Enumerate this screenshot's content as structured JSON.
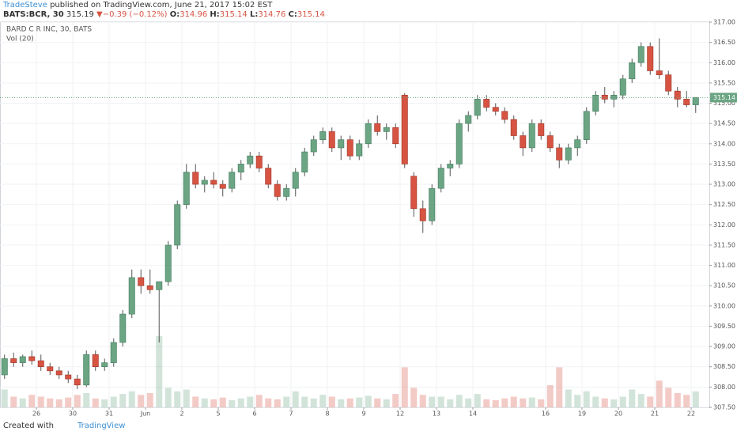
{
  "header": {
    "author": "TradeSteve",
    "published": "published on TradingView.com, June 21, 2017 15:02 EST",
    "symbol": "BATS:BCR, 30",
    "price": "315.19",
    "change": "−0.39 (−0.12%)",
    "o_label": "O:",
    "o": "314.96",
    "h_label": "H:",
    "h": "315.14",
    "l_label": "L:",
    "l": "314.76",
    "c_label": "C:",
    "c": "315.14"
  },
  "footer": {
    "created": "Created with",
    "brand": "TradingView"
  },
  "chart_data": {
    "type": "candlestick",
    "legend": [
      "BARD C R INC, 30, BATS",
      "Vol (20)"
    ],
    "up_color": "#6ba583",
    "down_color": "#d75442",
    "grid": true,
    "last_price": 315.14,
    "xlim": [
      0,
      78
    ],
    "xticks": [
      {
        "value": 4,
        "label": "26"
      },
      {
        "value": 8,
        "label": "30"
      },
      {
        "value": 12,
        "label": "31"
      },
      {
        "value": 16,
        "label": "Jun"
      },
      {
        "value": 20,
        "label": "2"
      },
      {
        "value": 24,
        "label": "5"
      },
      {
        "value": 28,
        "label": "6"
      },
      {
        "value": 32,
        "label": "7"
      },
      {
        "value": 36,
        "label": "8"
      },
      {
        "value": 40,
        "label": "9"
      },
      {
        "value": 44,
        "label": "12"
      },
      {
        "value": 48,
        "label": "13"
      },
      {
        "value": 52,
        "label": "14"
      },
      {
        "value": 60,
        "label": "16"
      },
      {
        "value": 64,
        "label": "19"
      },
      {
        "value": 68,
        "label": "20"
      },
      {
        "value": 72,
        "label": "21"
      },
      {
        "value": 76,
        "label": "22"
      }
    ],
    "ylim": [
      307.5,
      317
    ],
    "yticks": [
      {
        "value": 307.5,
        "label": "307.50"
      },
      {
        "value": 308,
        "label": "308.00"
      },
      {
        "value": 308.5,
        "label": "308.50"
      },
      {
        "value": 309,
        "label": "309.00"
      },
      {
        "value": 309.5,
        "label": "309.50"
      },
      {
        "value": 310,
        "label": "310.00"
      },
      {
        "value": 310.5,
        "label": "310.50"
      },
      {
        "value": 311,
        "label": "311.00"
      },
      {
        "value": 311.5,
        "label": "311.50"
      },
      {
        "value": 312,
        "label": "312.00"
      },
      {
        "value": 312.5,
        "label": "312.50"
      },
      {
        "value": 313,
        "label": "313.00"
      },
      {
        "value": 313.5,
        "label": "313.50"
      },
      {
        "value": 314,
        "label": "314.00"
      },
      {
        "value": 314.5,
        "label": "314.50"
      },
      {
        "value": 315,
        "label": "315.00"
      },
      {
        "value": 315.5,
        "label": "315.50"
      },
      {
        "value": 316,
        "label": "316.00"
      },
      {
        "value": 316.5,
        "label": "316.50"
      },
      {
        "value": 317,
        "label": "317.00"
      }
    ],
    "open": [
      308.3,
      308.7,
      308.6,
      308.75,
      308.65,
      308.5,
      308.4,
      308.3,
      308.2,
      308.05,
      308.8,
      308.5,
      308.6,
      309.1,
      309.8,
      310.7,
      310.5,
      310.4,
      310.6,
      311.5,
      312.5,
      313.3,
      313.0,
      313.1,
      313.0,
      312.9,
      313.3,
      313.5,
      313.7,
      313.4,
      313.0,
      312.7,
      312.9,
      313.3,
      313.8,
      314.1,
      314.3,
      313.9,
      314.1,
      313.7,
      314.0,
      314.5,
      314.3,
      314.4,
      315.2,
      313.2,
      312.4,
      312.1,
      312.9,
      313.4,
      313.5,
      314.5,
      314.7,
      315.1,
      314.9,
      314.8,
      314.6,
      314.2,
      313.9,
      314.5,
      314.2,
      313.9,
      313.6,
      313.9,
      314.1,
      314.8,
      315.2,
      315.1,
      315.2,
      315.6,
      316.0,
      316.4,
      315.8,
      315.7,
      315.3,
      315.1,
      314.96
    ],
    "high": [
      308.8,
      308.85,
      308.8,
      308.9,
      308.8,
      308.6,
      308.5,
      308.4,
      308.3,
      308.9,
      308.9,
      308.7,
      309.2,
      309.9,
      310.9,
      310.9,
      310.9,
      310.6,
      311.6,
      312.6,
      313.5,
      313.5,
      313.2,
      313.3,
      313.1,
      313.4,
      313.6,
      313.8,
      313.8,
      313.5,
      313.1,
      313.0,
      313.4,
      313.9,
      314.2,
      314.4,
      314.4,
      314.2,
      314.2,
      314.1,
      314.6,
      314.7,
      314.5,
      314.5,
      315.25,
      313.3,
      312.6,
      313.0,
      313.5,
      313.6,
      314.6,
      314.8,
      315.2,
      315.2,
      315.0,
      314.9,
      314.7,
      314.3,
      314.6,
      314.6,
      314.3,
      314.0,
      314.0,
      314.2,
      314.9,
      315.3,
      315.4,
      315.3,
      315.7,
      316.1,
      316.5,
      316.5,
      316.6,
      315.8,
      315.4,
      315.3,
      315.14
    ],
    "low": [
      308.2,
      308.5,
      308.5,
      308.55,
      308.4,
      308.3,
      308.2,
      308.1,
      307.95,
      308.0,
      308.4,
      308.4,
      308.5,
      309.0,
      309.7,
      310.3,
      310.3,
      309.1,
      310.5,
      311.4,
      312.4,
      312.9,
      312.8,
      312.9,
      312.7,
      312.8,
      313.1,
      313.4,
      313.3,
      312.9,
      312.6,
      312.6,
      312.7,
      313.2,
      313.7,
      314.0,
      313.8,
      313.6,
      313.6,
      313.6,
      313.9,
      314.2,
      314.1,
      313.9,
      313.4,
      312.2,
      311.8,
      312.0,
      312.8,
      313.2,
      313.4,
      314.3,
      314.6,
      314.8,
      314.7,
      314.5,
      314.1,
      313.7,
      313.8,
      314.1,
      313.8,
      313.4,
      313.5,
      313.7,
      314.0,
      314.7,
      315.0,
      314.9,
      315.1,
      315.5,
      315.9,
      315.7,
      315.6,
      315.2,
      314.9,
      314.9,
      314.76
    ],
    "close": [
      308.7,
      308.6,
      308.75,
      308.65,
      308.5,
      308.4,
      308.3,
      308.2,
      308.05,
      308.8,
      308.5,
      308.6,
      309.1,
      309.8,
      310.7,
      310.5,
      310.4,
      310.6,
      311.5,
      312.5,
      313.3,
      313.0,
      313.1,
      313.0,
      312.9,
      313.3,
      313.5,
      313.7,
      313.4,
      313.0,
      312.7,
      312.9,
      313.3,
      313.8,
      314.1,
      314.3,
      313.9,
      314.1,
      313.7,
      314.0,
      314.5,
      314.3,
      314.4,
      314.0,
      313.5,
      312.4,
      312.1,
      312.9,
      313.4,
      313.5,
      314.5,
      314.7,
      315.1,
      314.9,
      314.8,
      314.6,
      314.2,
      313.9,
      314.5,
      314.2,
      313.9,
      313.6,
      313.9,
      314.1,
      314.8,
      315.2,
      315.1,
      315.2,
      315.6,
      316.0,
      316.4,
      315.8,
      315.7,
      315.3,
      315.1,
      314.96,
      315.14
    ],
    "volume": [
      20,
      12,
      10,
      14,
      12,
      10,
      9,
      11,
      14,
      16,
      10,
      9,
      12,
      15,
      18,
      14,
      16,
      80,
      22,
      18,
      20,
      12,
      10,
      9,
      11,
      8,
      10,
      12,
      14,
      10,
      9,
      12,
      18,
      12,
      10,
      14,
      12,
      9,
      10,
      11,
      13,
      10,
      9,
      15,
      45,
      22,
      14,
      12,
      12,
      9,
      14,
      10,
      15,
      9,
      8,
      10,
      12,
      10,
      11,
      9,
      25,
      45,
      20,
      14,
      18,
      12,
      10,
      9,
      12,
      20,
      15,
      12,
      30,
      22,
      16,
      14,
      18
    ]
  }
}
